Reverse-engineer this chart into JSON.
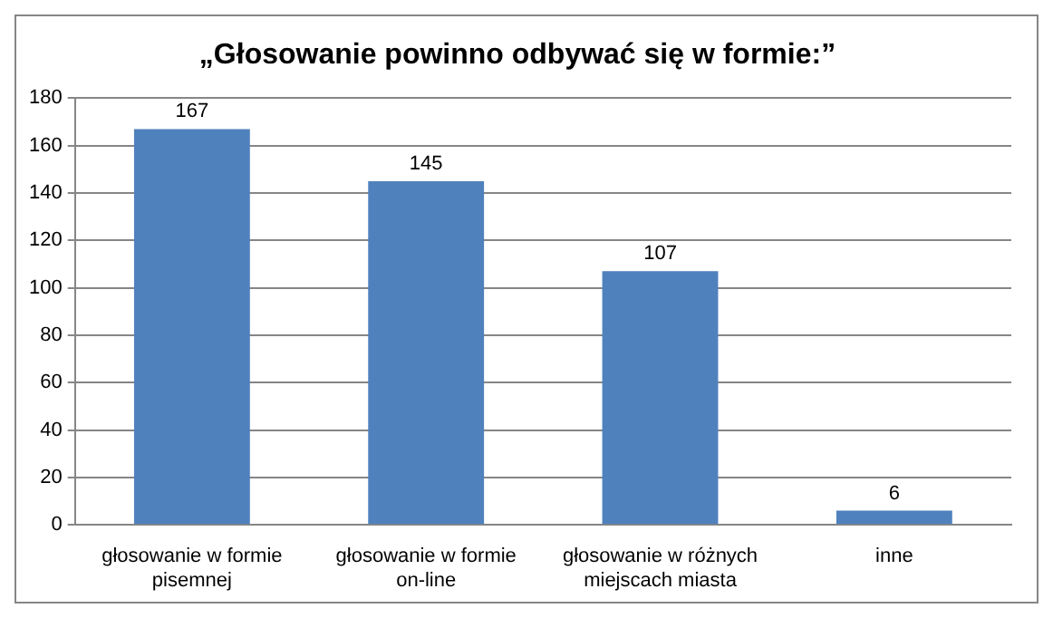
{
  "chart_data": {
    "type": "bar",
    "title": "„Głosowanie powinno odbywać się w formie:”",
    "categories": [
      "głosowanie w formie pisemnej",
      "głosowanie w formie on-line",
      "głosowanie w różnych miejscach miasta",
      "inne"
    ],
    "values": [
      167,
      145,
      107,
      6
    ],
    "color": "#4f81bd",
    "ylim": [
      0,
      180
    ],
    "yticks": [
      0,
      20,
      40,
      60,
      80,
      100,
      120,
      140,
      160,
      180
    ],
    "grid": "y",
    "data_labels": true
  }
}
